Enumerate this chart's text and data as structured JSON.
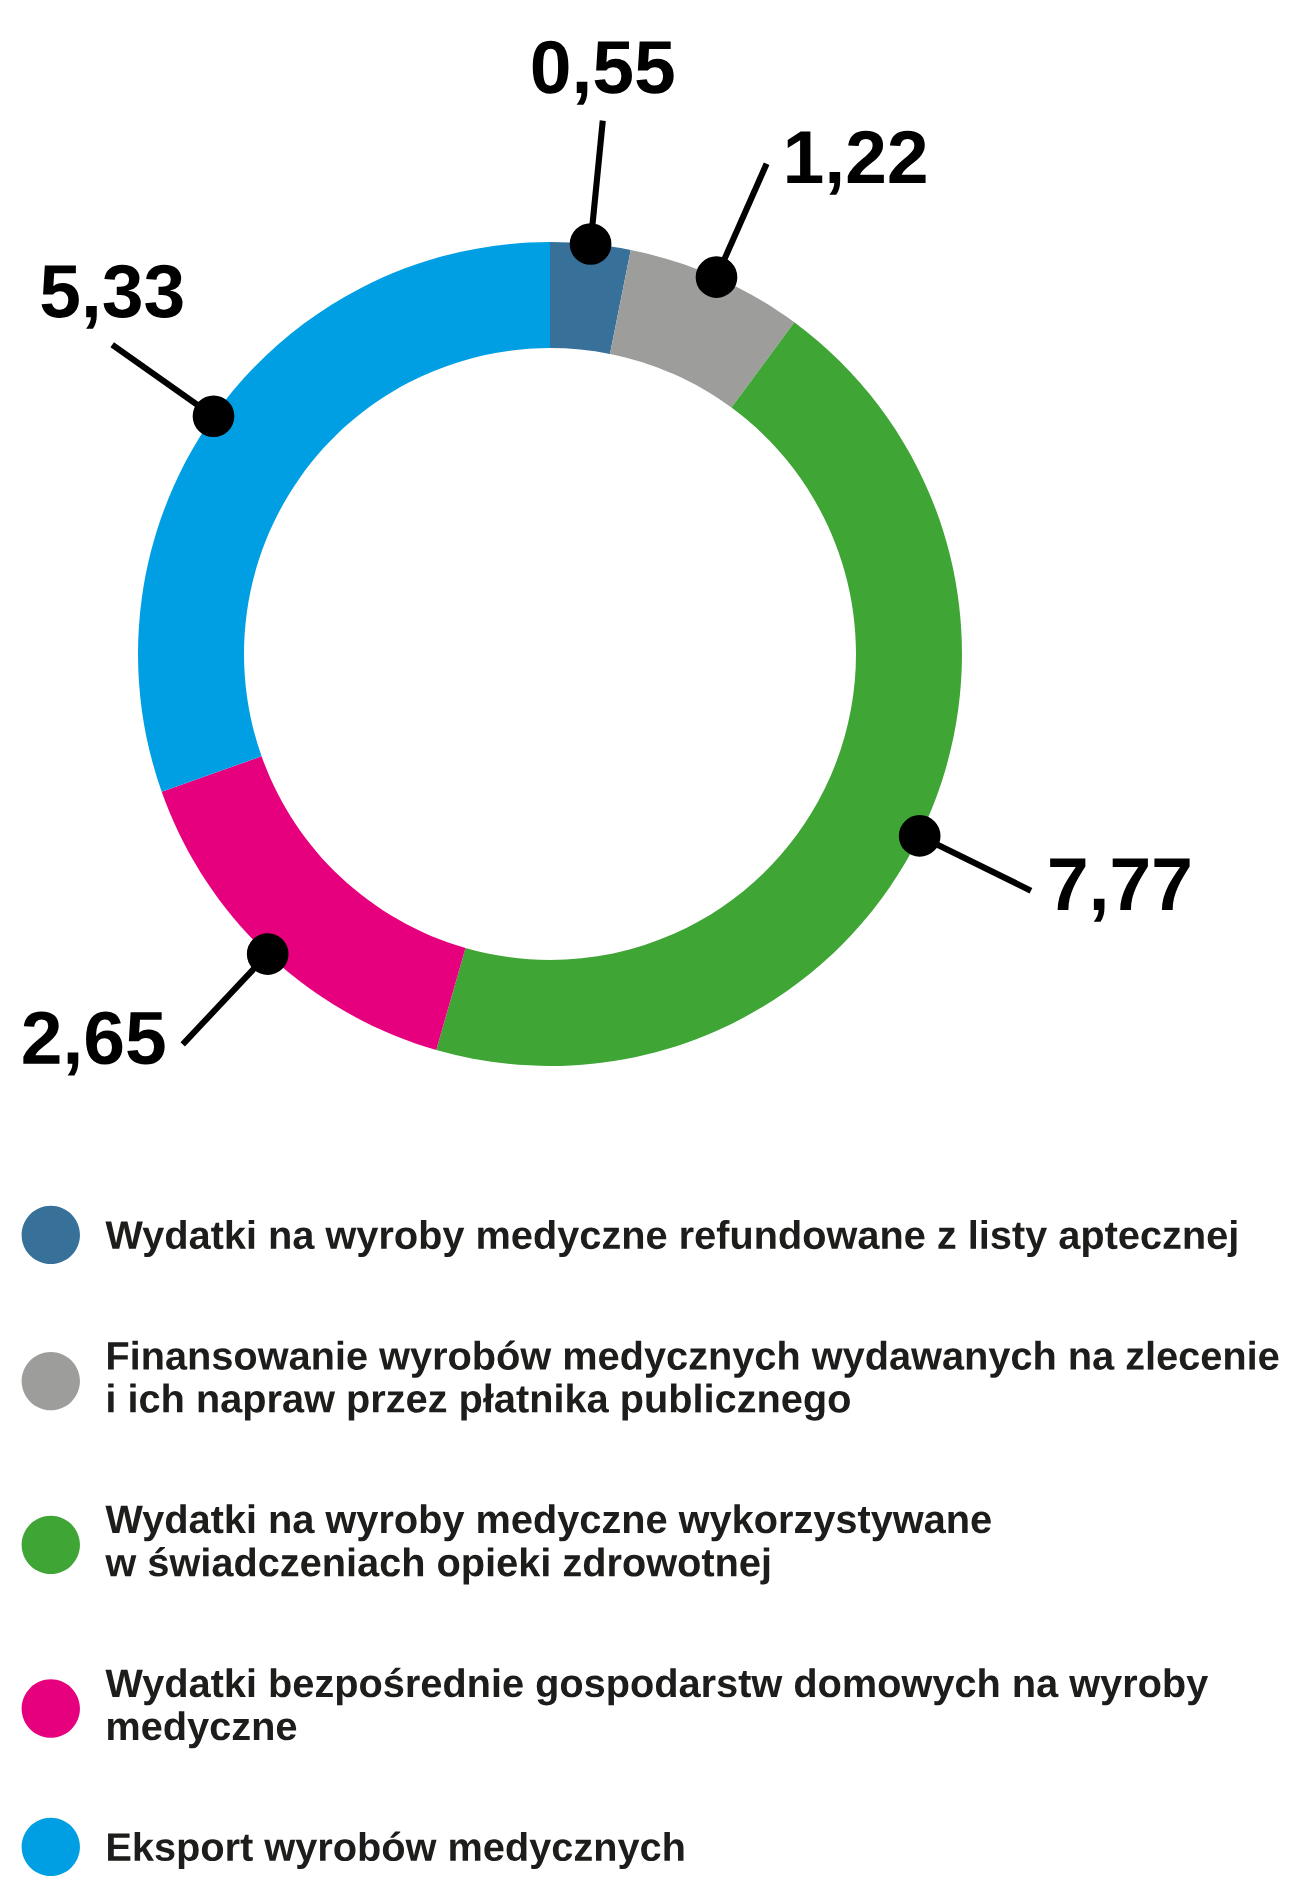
{
  "chart_data": {
    "type": "donut",
    "categories": [
      "Wydatki na wyroby medyczne refundowane z listy aptecznej",
      "Finansowanie wyrobów medycznych wydawanych na zlecenie\ni ich napraw przez płatnika publicznego",
      "Wydatki na wyroby medyczne wykorzystywane\nw świadczeniach opieki zdrowotnej",
      "Wydatki bezpośrednie gospodarstw domowych na wyroby\nmedyczne",
      "Eksport wyrobów medycznych"
    ],
    "values": [
      0.55,
      1.22,
      7.77,
      2.65,
      5.33
    ],
    "colors": [
      "#37719a",
      "#9d9d9c",
      "#3fa535",
      "#e6007e",
      "#009fe3"
    ],
    "value_labels": [
      "0,55",
      "1,22",
      "7,77",
      "2,65",
      "5,33"
    ],
    "legend": "bottom"
  }
}
